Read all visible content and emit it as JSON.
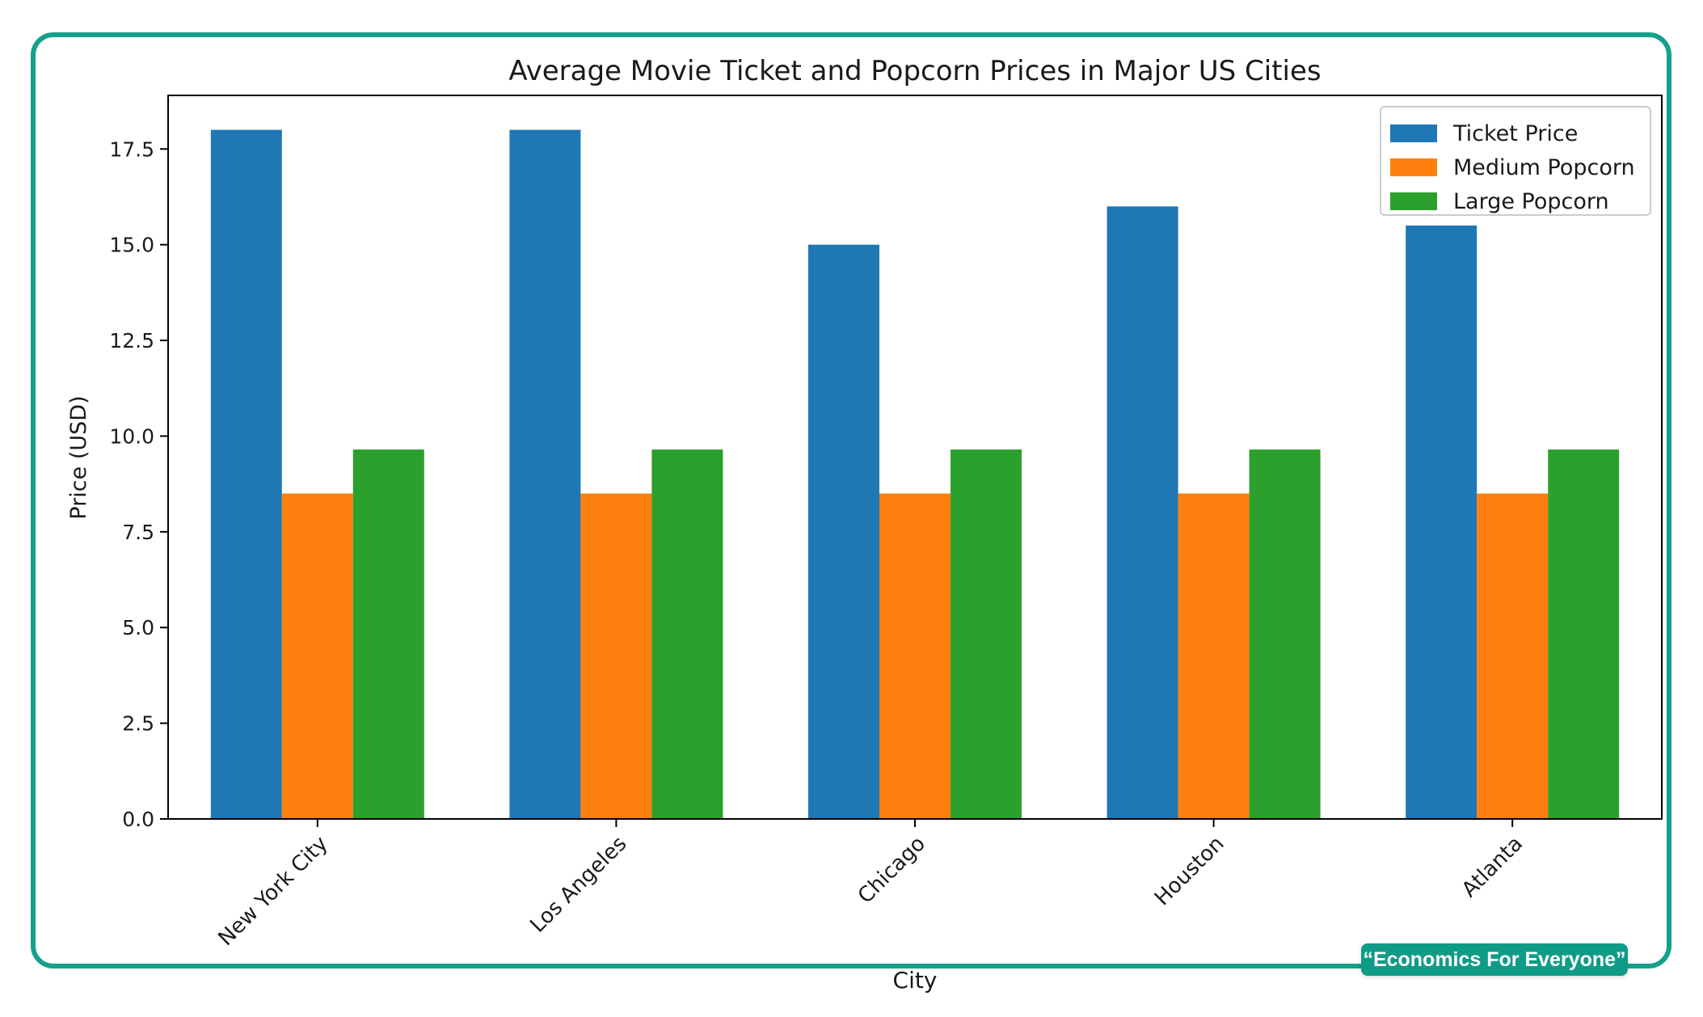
{
  "brand": {
    "frame_color": "#15a08c",
    "badge_color": "#0f9c86"
  },
  "badge_text": "“Economics For Everyone”",
  "chart_data": {
    "type": "bar",
    "title": "Average Movie Ticket and Popcorn Prices in Major US Cities",
    "xlabel": "City",
    "ylabel": "Price (USD)",
    "ylim": [
      0,
      18.9
    ],
    "yticks": [
      "0.0",
      "2.5",
      "5.0",
      "7.5",
      "10.0",
      "12.5",
      "15.0",
      "17.5"
    ],
    "categories": [
      "New York City",
      "Los Angeles",
      "Chicago",
      "Houston",
      "Atlanta"
    ],
    "series": [
      {
        "name": "Ticket Price",
        "color": "#1f77b4",
        "values": [
          18.0,
          18.0,
          15.0,
          16.0,
          15.5
        ]
      },
      {
        "name": "Medium Popcorn",
        "color": "#ff7f0e",
        "values": [
          8.5,
          8.5,
          8.5,
          8.5,
          8.5
        ]
      },
      {
        "name": "Large Popcorn",
        "color": "#2ca02c",
        "values": [
          9.65,
          9.65,
          9.65,
          9.65,
          9.65
        ]
      }
    ],
    "legend": "top-right",
    "grid": false
  }
}
